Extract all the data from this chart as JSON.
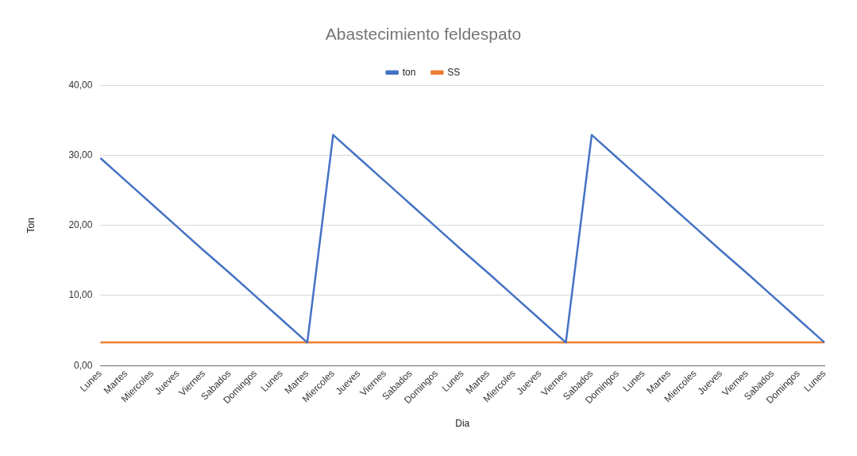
{
  "chart_data": {
    "type": "line",
    "title": "Abastecimiento feldespato",
    "xlabel": "Dia",
    "ylabel": "Ton",
    "categories": [
      "Lunes",
      "Martes",
      "Miercoles",
      "Jueves",
      "Viernes",
      "Sabados",
      "Domingos",
      "Lunes",
      "Martes",
      "Miercoles",
      "Jueves",
      "Viernes",
      "Sabados",
      "Domingos",
      "Lunes",
      "Martes",
      "Miercoles",
      "Jueves",
      "Viernes",
      "Sabados",
      "Domingos",
      "Lunes",
      "Martes",
      "Miercoles",
      "Jueves",
      "Viernes",
      "Sabados",
      "Domingos",
      "Lunes"
    ],
    "series": [
      {
        "name": "ton",
        "color": "#4472c4",
        "values": [
          29.6,
          26.3,
          23.0,
          19.7,
          16.4,
          13.2,
          9.9,
          6.6,
          3.3,
          32.9,
          29.6,
          26.3,
          23.0,
          19.7,
          16.4,
          13.2,
          9.9,
          6.6,
          3.3,
          32.9,
          29.6,
          26.3,
          23.0,
          19.7,
          16.4,
          13.2,
          9.9,
          6.6,
          3.3
        ]
      },
      {
        "name": "SS",
        "color": "#ed7d31",
        "values": [
          3.3,
          3.3,
          3.3,
          3.3,
          3.3,
          3.3,
          3.3,
          3.3,
          3.3,
          3.3,
          3.3,
          3.3,
          3.3,
          3.3,
          3.3,
          3.3,
          3.3,
          3.3,
          3.3,
          3.3,
          3.3,
          3.3,
          3.3,
          3.3,
          3.3,
          3.3,
          3.3,
          3.3,
          3.3
        ]
      }
    ],
    "ylim": [
      0,
      40
    ],
    "yticks": [
      {
        "value": 0,
        "label": "0,00"
      },
      {
        "value": 10,
        "label": "10,00"
      },
      {
        "value": 20,
        "label": "20,00"
      },
      {
        "value": 30,
        "label": "30,00"
      },
      {
        "value": 40,
        "label": "40,00"
      }
    ],
    "grid": "y",
    "legend": "top",
    "marker": "none",
    "line_style": "solid"
  }
}
